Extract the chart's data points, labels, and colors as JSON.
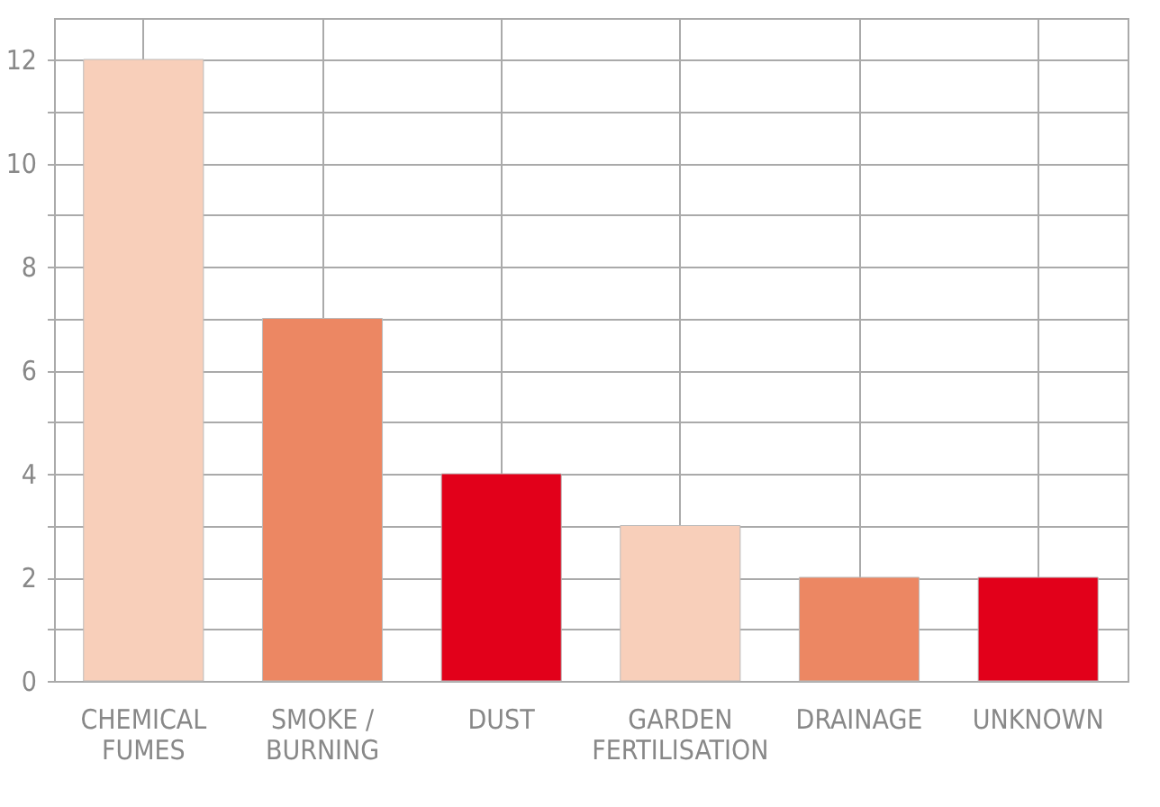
{
  "chart_data": {
    "type": "bar",
    "categories": [
      "CHEMICAL FUMES",
      "SMOKE / BURNING",
      "DUST",
      "GARDEN FERTILISATION",
      "DRAINAGE",
      "UNKNOWN"
    ],
    "values": [
      12,
      7,
      4,
      3,
      2,
      2
    ],
    "colors": [
      "#f8cfba",
      "#ec8763",
      "#e2001a",
      "#f8cfba",
      "#ec8763",
      "#e2001a"
    ],
    "ylim": [
      0,
      12.8
    ],
    "yticks": [
      0,
      {
        "value": 1,
        "label": null
      },
      2,
      {
        "value": 3,
        "label": null
      },
      4,
      {
        "value": 5,
        "label": null
      },
      6,
      {
        "value": 7,
        "label": null
      },
      8,
      {
        "value": 9,
        "label": null
      },
      10,
      {
        "value": 11,
        "label": null
      },
      12
    ],
    "grid": true
  }
}
